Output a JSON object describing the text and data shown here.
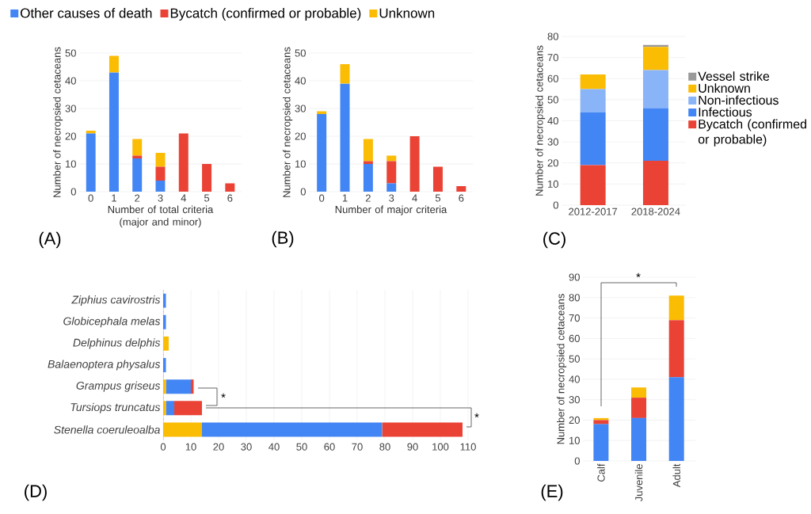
{
  "chart_data": [
    {
      "type": "bar",
      "stacked": true,
      "xlabel": "Number of total criteria (major and minor)",
      "ylabel": "Number of necropsied cetaceans",
      "categories": [
        "0",
        "1",
        "2",
        "3",
        "4",
        "5",
        "6"
      ],
      "ylim": [
        0,
        50
      ],
      "yticks": [
        0,
        10,
        20,
        30,
        40,
        50
      ],
      "grid": "y",
      "legend": "top",
      "annotations": [
        "(A)"
      ],
      "series": [
        {
          "name": "Other causes of death",
          "color": "#4285f4",
          "values": [
            21,
            43,
            12,
            4,
            0,
            0,
            0
          ]
        },
        {
          "name": "Bycatch (confirmed or probable)",
          "color": "#ea4335",
          "values": [
            0,
            0,
            1,
            5,
            21,
            10,
            3
          ]
        },
        {
          "name": "Unknown",
          "color": "#fbbc04",
          "values": [
            1,
            6,
            6,
            5,
            0,
            0,
            0
          ]
        }
      ]
    },
    {
      "type": "bar",
      "stacked": true,
      "xlabel": "Number of major criteria",
      "ylabel": "Number of necropsied cetaceans",
      "categories": [
        "0",
        "1",
        "2",
        "3",
        "4",
        "5",
        "6"
      ],
      "ylim": [
        0,
        50
      ],
      "yticks": [
        0,
        10,
        20,
        30,
        40,
        50
      ],
      "grid": "y",
      "annotations": [
        "(B)"
      ],
      "series": [
        {
          "color": "#4285f4",
          "values": [
            28,
            39,
            10,
            3,
            0,
            0,
            0
          ]
        },
        {
          "color": "#ea4335",
          "values": [
            0,
            0,
            1,
            8,
            20,
            9,
            2
          ]
        },
        {
          "color": "#fbbc04",
          "values": [
            1,
            7,
            8,
            2,
            0,
            0,
            0
          ]
        }
      ]
    },
    {
      "type": "bar",
      "stacked": true,
      "ylabel": "Number of necropsied cetaceans",
      "categories": [
        "2012-2017",
        "2018-2024"
      ],
      "ylim": [
        0,
        80
      ],
      "yticks": [
        0,
        10,
        20,
        30,
        40,
        50,
        60,
        70,
        80
      ],
      "grid": "y",
      "legend": "right",
      "annotations": [
        "(C)"
      ],
      "series": [
        {
          "name": "Bycatch (confirmed or probable)",
          "color": "#ea4335",
          "values": [
            19,
            21
          ]
        },
        {
          "name": "Infectious",
          "color": "#4285f4",
          "values": [
            25,
            25
          ]
        },
        {
          "name": "Non-infectious",
          "color": "#8ab4f8",
          "values": [
            11,
            18
          ]
        },
        {
          "name": "Unknown",
          "color": "#fbbc04",
          "values": [
            7,
            11
          ]
        },
        {
          "name": "Vessel strike",
          "color": "#999999",
          "values": [
            0,
            1
          ]
        }
      ]
    },
    {
      "type": "bar",
      "stacked": true,
      "orientation": "horizontal",
      "categories": [
        "Ziphius cavirostris",
        "Globicephala melas",
        "Delphinus delphis",
        "Balaenoptera physalus",
        "Grampus griseus",
        "Tursiops truncatus",
        "Stenella coeruleoalba"
      ],
      "xlim": [
        0,
        110
      ],
      "xticks": [
        0,
        10,
        20,
        30,
        40,
        50,
        60,
        70,
        80,
        90,
        100,
        110
      ],
      "grid": "x",
      "annotations": [
        "*",
        "*",
        "(D)"
      ],
      "series": [
        {
          "color": "#fbbc04",
          "values": [
            0,
            0,
            2,
            0,
            1,
            1,
            14
          ]
        },
        {
          "color": "#4285f4",
          "values": [
            1,
            1,
            0,
            1,
            9,
            3,
            65
          ]
        },
        {
          "color": "#ea4335",
          "values": [
            0,
            0,
            0,
            0,
            1,
            10,
            29
          ]
        }
      ]
    },
    {
      "type": "bar",
      "stacked": true,
      "ylabel": "Number of necropsied cetaceans",
      "categories": [
        "Calf",
        "Juvenile",
        "Adult"
      ],
      "ylim": [
        0,
        90
      ],
      "yticks": [
        0,
        10,
        20,
        30,
        40,
        50,
        60,
        70,
        80,
        90
      ],
      "grid": "y",
      "annotations": [
        "*",
        "(E)"
      ],
      "series": [
        {
          "color": "#4285f4",
          "values": [
            18,
            21,
            41
          ]
        },
        {
          "color": "#ea4335",
          "values": [
            2,
            10,
            28
          ]
        },
        {
          "color": "#fbbc04",
          "values": [
            1,
            5,
            12
          ]
        }
      ]
    }
  ]
}
